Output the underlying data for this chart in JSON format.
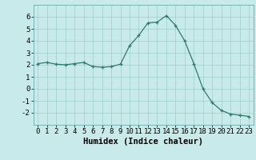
{
  "x": [
    0,
    1,
    2,
    3,
    4,
    5,
    6,
    7,
    8,
    9,
    10,
    11,
    12,
    13,
    14,
    15,
    16,
    17,
    18,
    19,
    20,
    21,
    22,
    23
  ],
  "y": [
    2.1,
    2.2,
    2.05,
    2.0,
    2.1,
    2.2,
    1.85,
    1.8,
    1.85,
    2.05,
    3.6,
    4.45,
    5.5,
    5.55,
    6.1,
    5.3,
    4.0,
    2.1,
    0.0,
    -1.15,
    -1.8,
    -2.1,
    -2.2,
    -2.3
  ],
  "bg_color": "#c8eaea",
  "line_color": "#2e7b6e",
  "marker": "+",
  "xlabel": "Humidex (Indice chaleur)",
  "xlim": [
    -0.5,
    23.5
  ],
  "ylim": [
    -3,
    7
  ],
  "yticks": [
    -2,
    -1,
    0,
    1,
    2,
    3,
    4,
    5,
    6
  ],
  "xticks": [
    0,
    1,
    2,
    3,
    4,
    5,
    6,
    7,
    8,
    9,
    10,
    11,
    12,
    13,
    14,
    15,
    16,
    17,
    18,
    19,
    20,
    21,
    22,
    23
  ],
  "grid_color": "#9ecfca",
  "label_fontsize": 7.5,
  "tick_fontsize": 6.5
}
